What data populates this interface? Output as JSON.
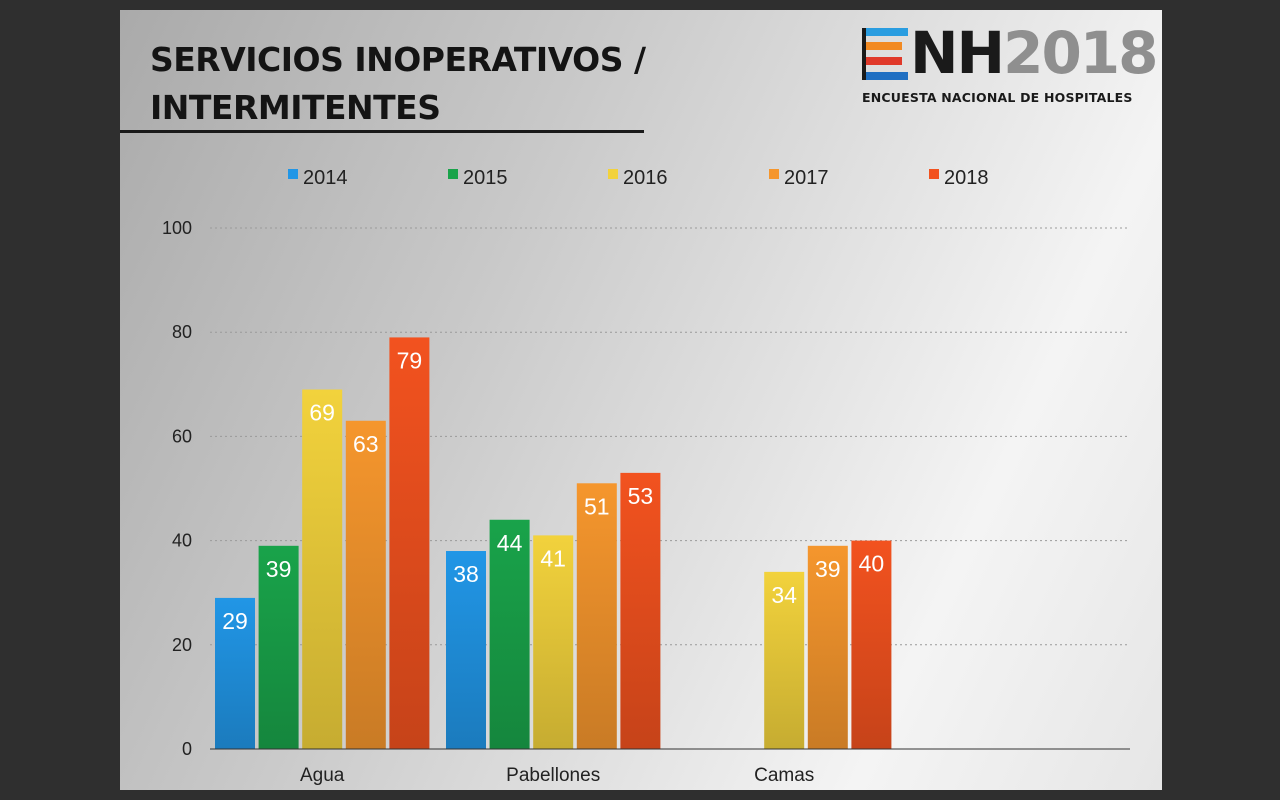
{
  "slide": {
    "title_line1": "SERVICIOS INOPERATIVOS /",
    "title_line2": "INTERMITENTES"
  },
  "logo": {
    "brand_letters": "NH",
    "brand_year": "2018",
    "subtitle": "ENCUESTA NACIONAL DE HOSPITALES"
  },
  "colors": {
    "2014": "#2196e6",
    "2015": "#19a34a",
    "2016": "#f2d23c",
    "2017": "#f5962d",
    "2018": "#f2521f"
  },
  "chart_data": {
    "type": "bar",
    "categories": [
      "Agua",
      "Pabellones",
      "Camas"
    ],
    "series": [
      {
        "name": "2014",
        "values": [
          29,
          38,
          null
        ]
      },
      {
        "name": "2015",
        "values": [
          39,
          44,
          null
        ]
      },
      {
        "name": "2016",
        "values": [
          69,
          41,
          34
        ]
      },
      {
        "name": "2017",
        "values": [
          63,
          51,
          39
        ]
      },
      {
        "name": "2018",
        "values": [
          79,
          53,
          40
        ]
      }
    ],
    "ylim": [
      0,
      100
    ],
    "yticks": [
      0,
      20,
      40,
      60,
      80,
      100
    ],
    "grid": true,
    "legend": "top",
    "data_labels": true
  }
}
